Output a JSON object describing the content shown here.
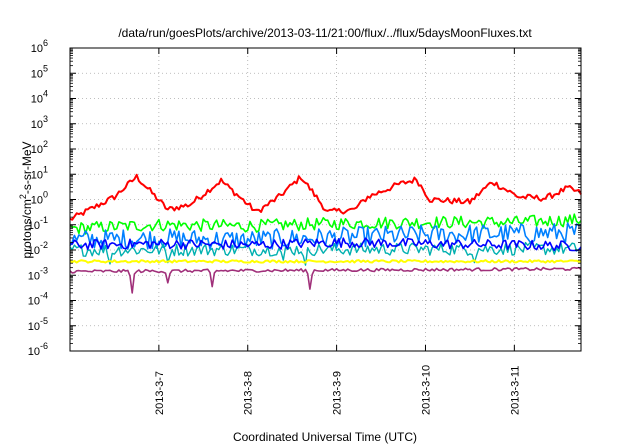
{
  "chart_data": {
    "type": "line",
    "title": "/data/run/goesPlots/archive/2013-03-11/21:00/flux/../flux/5daysMoonFluxes.txt",
    "xlabel": "Coordinated Universal Time (UTC)",
    "ylabel": "protons/cm2-s-sr-MeV",
    "ylabel_parts": {
      "pre": "protons/cm",
      "sup": "2",
      "post": "-s-sr-MeV"
    },
    "y_scale": "log",
    "ylim_exp": [
      -6,
      6
    ],
    "y_ticks": [
      {
        "base": "10",
        "exp": "-6",
        "value": -6
      },
      {
        "base": "10",
        "exp": "-5",
        "value": -5
      },
      {
        "base": "10",
        "exp": "-4",
        "value": -4
      },
      {
        "base": "10",
        "exp": "-3",
        "value": -3
      },
      {
        "base": "10",
        "exp": "-2",
        "value": -2
      },
      {
        "base": "10",
        "exp": "-1",
        "value": -1
      },
      {
        "base": "10",
        "exp": "0",
        "value": 0
      },
      {
        "base": "10",
        "exp": "1",
        "value": 1
      },
      {
        "base": "10",
        "exp": "2",
        "value": 2
      },
      {
        "base": "10",
        "exp": "3",
        "value": 3
      },
      {
        "base": "10",
        "exp": "4",
        "value": 4
      },
      {
        "base": "10",
        "exp": "5",
        "value": 5
      },
      {
        "base": "10",
        "exp": "6",
        "value": 6
      }
    ],
    "xlim_days": [
      0,
      5.75
    ],
    "x_ticks": [
      {
        "label": "2013-3-7",
        "day": 1
      },
      {
        "label": "2013-3-8",
        "day": 2
      },
      {
        "label": "2013-3-9",
        "day": 3
      },
      {
        "label": "2013-3-10",
        "day": 4
      },
      {
        "label": "2013-3-11",
        "day": 5
      }
    ],
    "grid": true,
    "legend": "none",
    "series": [
      {
        "color": "#ff0000",
        "stroke": 2.0,
        "base": [
          [
            0,
            -0.8
          ],
          [
            0.5,
            0.1
          ],
          [
            0.75,
            0.9
          ],
          [
            1.1,
            -0.4
          ],
          [
            1.35,
            -0.2
          ],
          [
            1.7,
            0.75
          ],
          [
            2.1,
            -0.5
          ],
          [
            2.35,
            0.1
          ],
          [
            2.6,
            0.9
          ],
          [
            2.9,
            -0.5
          ],
          [
            3.2,
            -0.4
          ],
          [
            3.35,
            0.1
          ],
          [
            3.7,
            0.6
          ],
          [
            3.9,
            0.8
          ],
          [
            4.05,
            0
          ],
          [
            4.5,
            -0.1
          ],
          [
            4.75,
            0.7
          ],
          [
            5.05,
            0.1
          ],
          [
            5.35,
            0.05
          ],
          [
            5.6,
            0.45
          ],
          [
            5.75,
            0.25
          ]
        ],
        "noise": 0.12,
        "dips": []
      },
      {
        "color": "#00ff00",
        "stroke": 1.6,
        "base": [
          [
            0,
            -1.15
          ],
          [
            1,
            -1.0
          ],
          [
            2,
            -1.05
          ],
          [
            3,
            -0.95
          ],
          [
            4,
            -0.9
          ],
          [
            5,
            -0.9
          ],
          [
            5.75,
            -0.8
          ]
        ],
        "noise": 0.25,
        "dips": []
      },
      {
        "color": "#0080ff",
        "stroke": 1.6,
        "base": [
          [
            0,
            -1.6
          ],
          [
            1,
            -1.55
          ],
          [
            2,
            -1.6
          ],
          [
            3,
            -1.5
          ],
          [
            4,
            -1.4
          ],
          [
            5,
            -1.35
          ],
          [
            5.75,
            -1.3
          ]
        ],
        "noise": 0.4,
        "dips": []
      },
      {
        "color": "#00b0b0",
        "stroke": 1.4,
        "base": [
          [
            0,
            -2.0
          ],
          [
            5.75,
            -1.95
          ]
        ],
        "noise": 0.25,
        "dips": [
          [
            0.45,
            -2.55
          ],
          [
            1.1,
            -2.5
          ],
          [
            2.4,
            -2.4
          ],
          [
            2.65,
            -2.6
          ],
          [
            4.55,
            -2.5
          ]
        ]
      },
      {
        "color": "#0000ff",
        "stroke": 1.6,
        "base": [
          [
            0,
            -1.8
          ],
          [
            1,
            -1.75
          ],
          [
            2,
            -1.8
          ],
          [
            3,
            -1.7
          ],
          [
            4,
            -1.75
          ],
          [
            5,
            -1.8
          ],
          [
            5.75,
            -1.85
          ]
        ],
        "noise": 0.2,
        "dips": []
      },
      {
        "color": "#ffff00",
        "stroke": 2.0,
        "base": [
          [
            0,
            -2.45
          ],
          [
            5.75,
            -2.45
          ]
        ],
        "noise": 0.05,
        "dips": []
      },
      {
        "color": "#a0307a",
        "stroke": 1.6,
        "base": [
          [
            0,
            -2.85
          ],
          [
            5.75,
            -2.75
          ]
        ],
        "noise": 0.06,
        "dips": [
          [
            0.7,
            -3.7
          ],
          [
            1.1,
            -3.3
          ],
          [
            1.6,
            -3.45
          ],
          [
            2.7,
            -3.55
          ]
        ]
      }
    ]
  }
}
